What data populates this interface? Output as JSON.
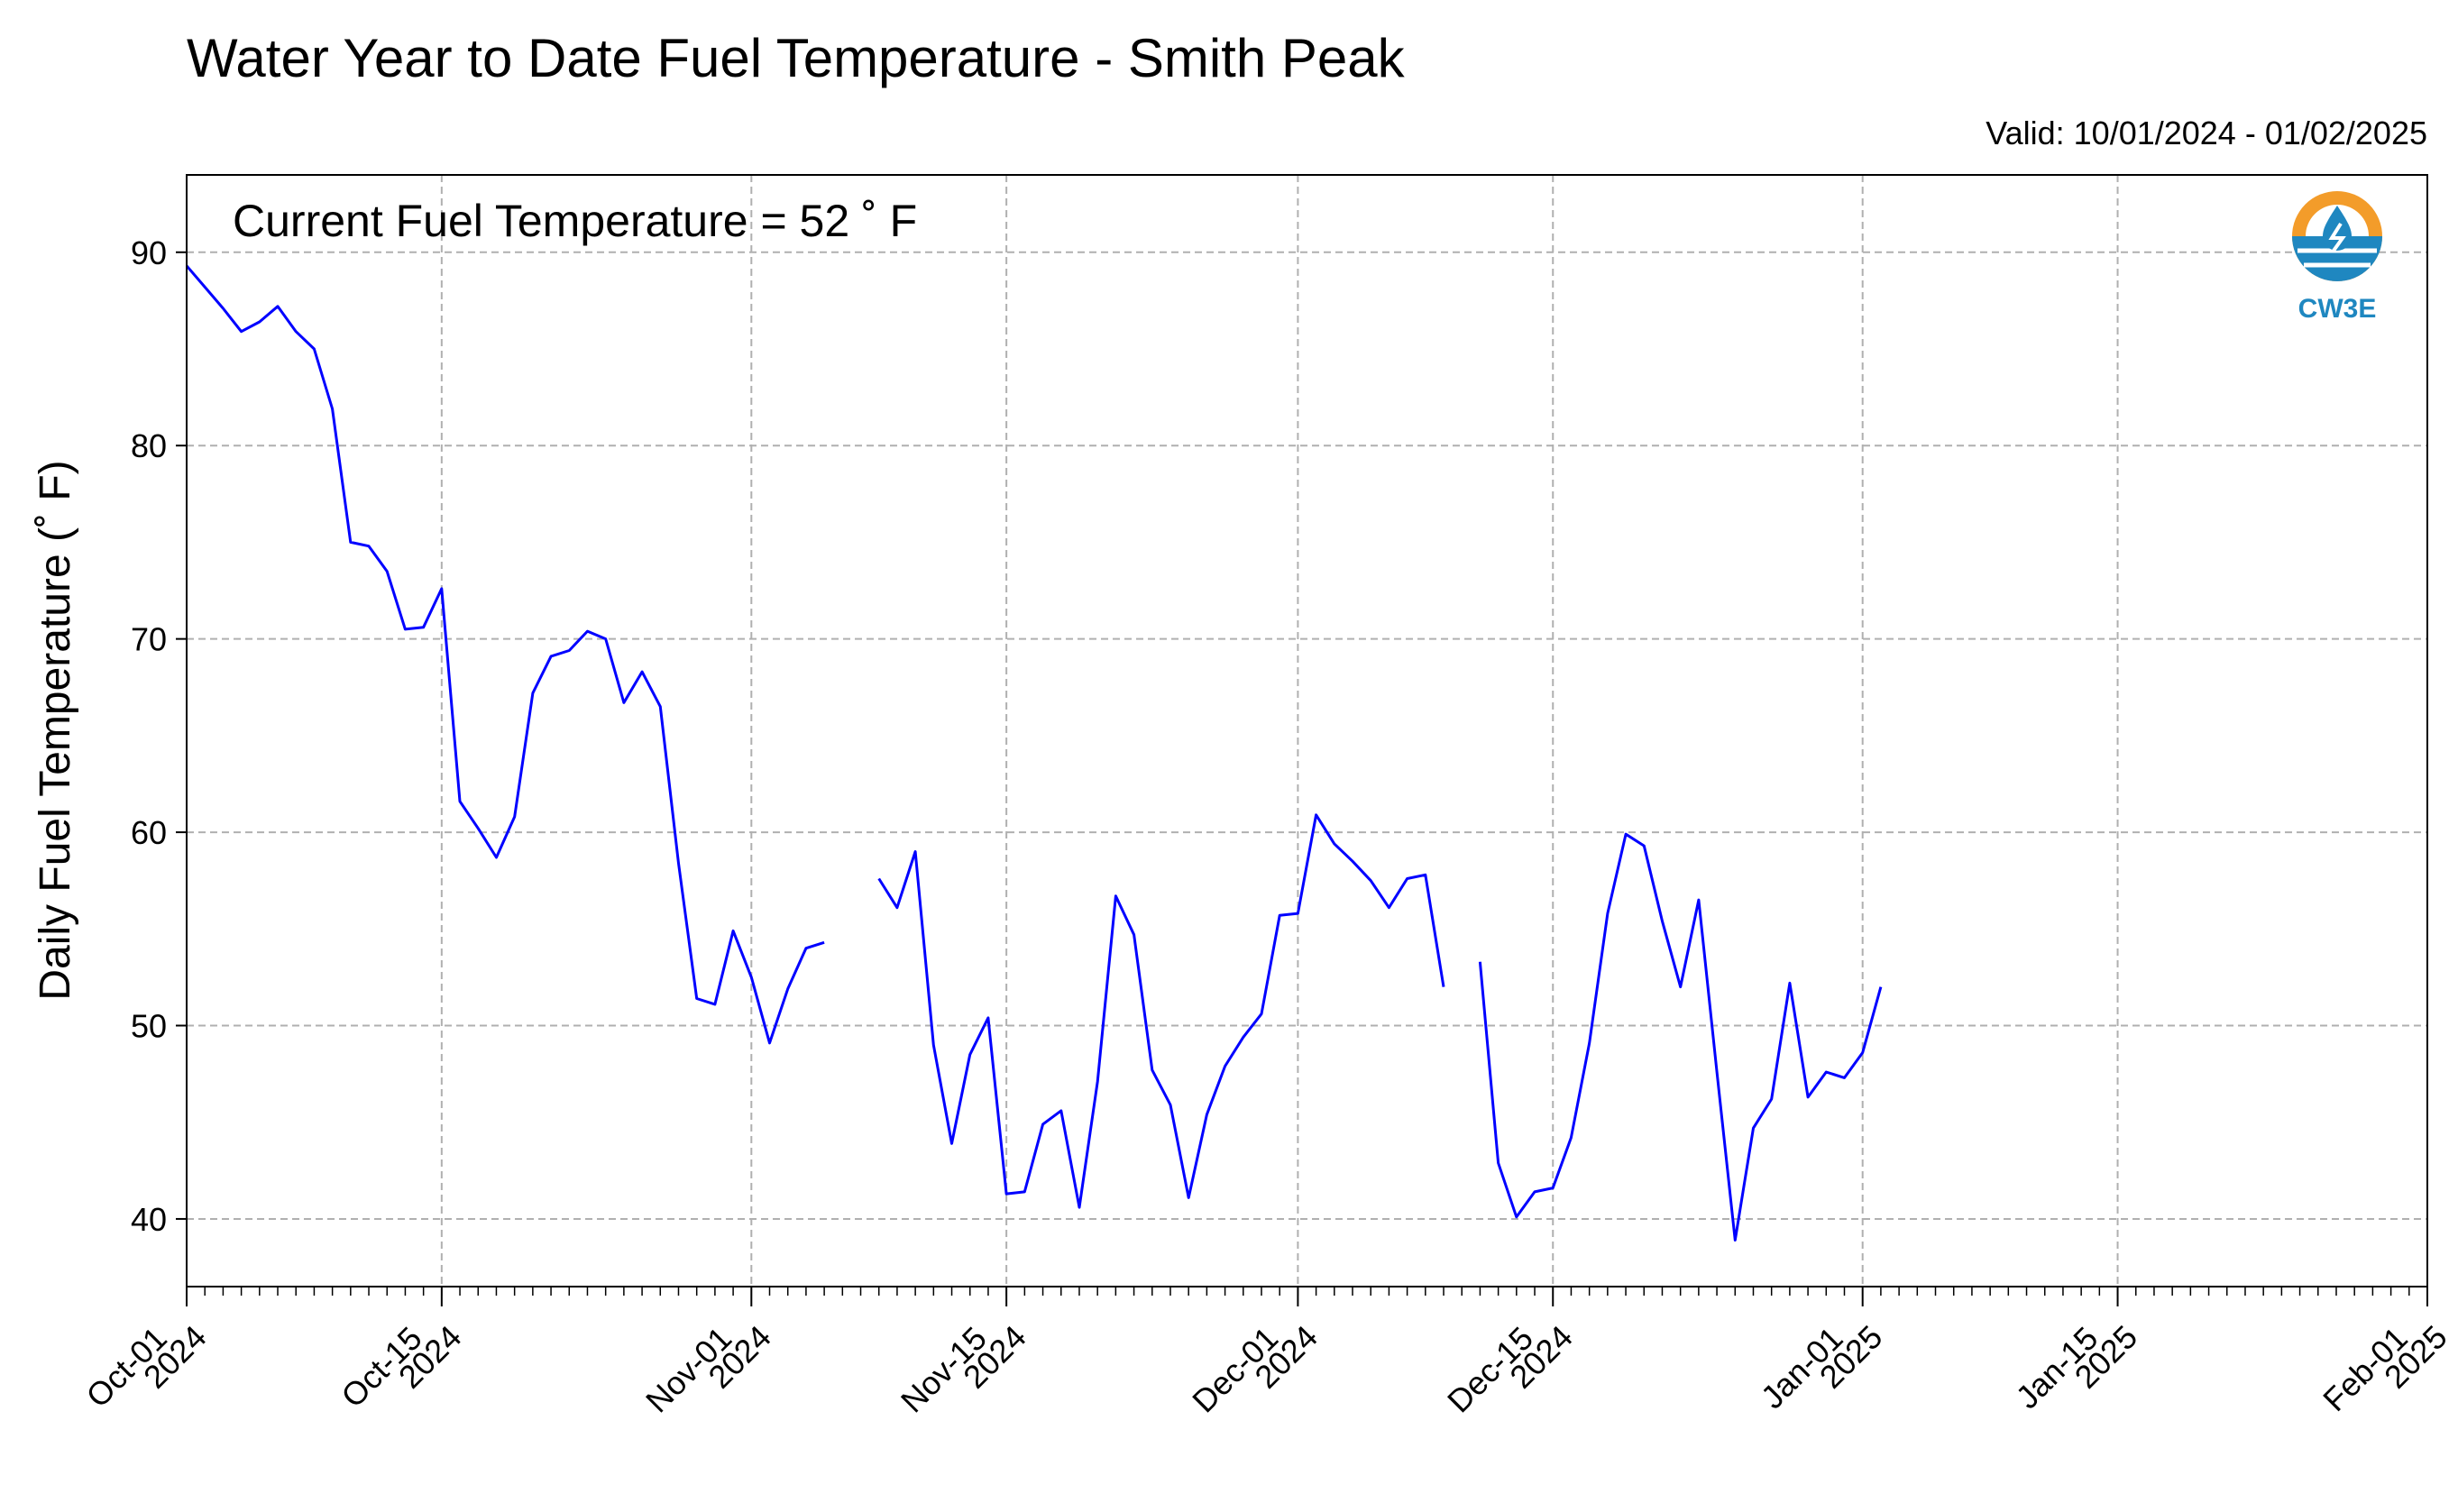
{
  "chart_data": {
    "type": "line",
    "title": "Water Year to Date Fuel Temperature - Smith Peak",
    "subtitle": "Valid: 10/01/2024 - 01/02/2025",
    "annotation": "Current Fuel Temperature = 52 ˚ F",
    "xlabel": "",
    "ylabel": "Daily Fuel Temperature (˚ F)",
    "x_start": "2024-10-01",
    "xlim": [
      "2024-10-01",
      "2025-02-01"
    ],
    "ylim": [
      36.5,
      94
    ],
    "yticks": [
      40,
      50,
      60,
      70,
      80,
      90
    ],
    "ytick_labels": [
      "40",
      "50",
      "60",
      "70",
      "80",
      "90"
    ],
    "xticks": [
      "2024-10-01",
      "2024-10-15",
      "2024-11-01",
      "2024-11-15",
      "2024-12-01",
      "2024-12-15",
      "2025-01-01",
      "2025-01-15",
      "2025-02-01"
    ],
    "xtick_labels": [
      [
        "Oct-01",
        "2024"
      ],
      [
        "Oct-15",
        "2024"
      ],
      [
        "Nov-01",
        "2024"
      ],
      [
        "Nov-15",
        "2024"
      ],
      [
        "Dec-01",
        "2024"
      ],
      [
        "Dec-15",
        "2024"
      ],
      [
        "Jan-01",
        "2025"
      ],
      [
        "Jan-15",
        "2025"
      ],
      [
        "Feb-01",
        "2025"
      ]
    ],
    "grid": true,
    "series": [
      {
        "color": "#0000ff",
        "x": [
          "2024-10-01",
          "2024-10-02",
          "2024-10-03",
          "2024-10-04",
          "2024-10-05",
          "2024-10-06",
          "2024-10-07",
          "2024-10-08",
          "2024-10-09",
          "2024-10-10",
          "2024-10-11",
          "2024-10-12",
          "2024-10-13",
          "2024-10-14",
          "2024-10-15",
          "2024-10-16",
          "2024-10-17",
          "2024-10-18",
          "2024-10-19",
          "2024-10-20",
          "2024-10-21",
          "2024-10-22",
          "2024-10-23",
          "2024-10-24",
          "2024-10-25",
          "2024-10-26",
          "2024-10-27",
          "2024-10-28",
          "2024-10-29",
          "2024-10-30",
          "2024-10-31",
          "2024-11-01",
          "2024-11-02",
          "2024-11-03",
          "2024-11-04",
          "2024-11-05",
          "2024-11-06",
          "2024-11-07",
          "2024-11-08",
          "2024-11-09",
          "2024-11-10",
          "2024-11-11",
          "2024-11-12",
          "2024-11-13",
          "2024-11-14",
          "2024-11-15",
          "2024-11-16",
          "2024-11-17",
          "2024-11-18",
          "2024-11-19",
          "2024-11-20",
          "2024-11-21",
          "2024-11-22",
          "2024-11-23",
          "2024-11-24",
          "2024-11-25",
          "2024-11-26",
          "2024-11-27",
          "2024-11-28",
          "2024-11-29",
          "2024-11-30",
          "2024-12-01",
          "2024-12-02",
          "2024-12-03",
          "2024-12-04",
          "2024-12-05",
          "2024-12-06",
          "2024-12-07",
          "2024-12-08",
          "2024-12-09",
          "2024-12-10",
          "2024-12-11",
          "2024-12-12",
          "2024-12-13",
          "2024-12-14",
          "2024-12-15",
          "2024-12-16",
          "2024-12-17",
          "2024-12-18",
          "2024-12-19",
          "2024-12-20",
          "2024-12-21",
          "2024-12-22",
          "2024-12-23",
          "2024-12-24",
          "2024-12-25",
          "2024-12-26",
          "2024-12-27",
          "2024-12-28",
          "2024-12-29",
          "2024-12-30",
          "2024-12-31",
          "2025-01-01",
          "2025-01-02"
        ],
        "y": [
          89.3,
          88.2,
          87.1,
          85.9,
          86.4,
          87.2,
          85.9,
          85.0,
          81.9,
          75.0,
          74.8,
          73.5,
          70.5,
          70.6,
          72.6,
          61.6,
          60.2,
          58.7,
          60.8,
          67.2,
          69.1,
          69.4,
          70.4,
          70.0,
          66.7,
          68.3,
          66.5,
          58.4,
          51.4,
          51.1,
          54.9,
          52.5,
          49.1,
          51.9,
          54.0,
          54.3,
          null,
          null,
          57.6,
          56.1,
          59.0,
          49.0,
          43.9,
          48.5,
          50.4,
          41.3,
          41.4,
          44.9,
          45.6,
          40.6,
          47.1,
          56.7,
          54.7,
          47.7,
          45.9,
          41.1,
          45.4,
          47.9,
          49.4,
          50.6,
          55.7,
          55.8,
          60.9,
          59.4,
          58.5,
          57.5,
          56.1,
          57.6,
          57.8,
          52.0,
          null,
          53.3,
          42.9,
          40.1,
          41.4,
          41.6,
          44.2,
          49.1,
          55.8,
          59.9,
          59.3,
          55.4,
          52.0,
          56.5,
          47.6,
          38.9,
          44.7,
          46.2,
          52.2,
          46.3,
          47.6,
          47.3,
          48.6,
          52.0
        ]
      }
    ]
  },
  "logo": {
    "text": "CW3E",
    "colors": {
      "orange": "#f39c2a",
      "blue": "#1f87c0"
    }
  }
}
